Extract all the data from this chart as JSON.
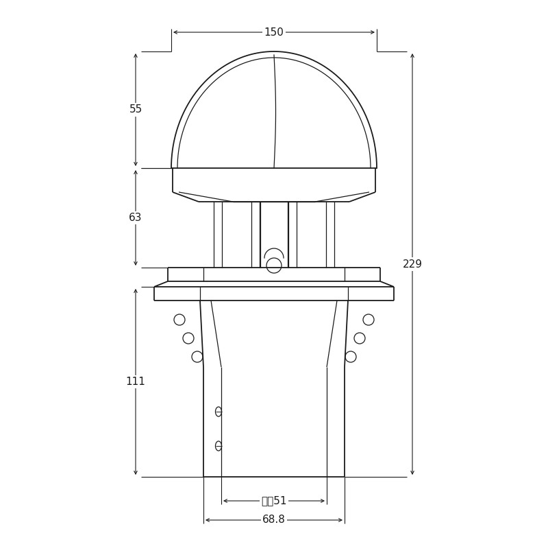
{
  "bg_color": "#ffffff",
  "line_color": "#1a1a1a",
  "fig_width": 8.0,
  "fig_height": 8.06,
  "dpi": 100,
  "labels": {
    "dim_150": "150",
    "dim_55": "55",
    "dim_63": "63",
    "dim_111": "111",
    "dim_229": "229",
    "dim_nei51": "内径51",
    "dim_688": "68.8"
  },
  "fontsize_dim": 11
}
